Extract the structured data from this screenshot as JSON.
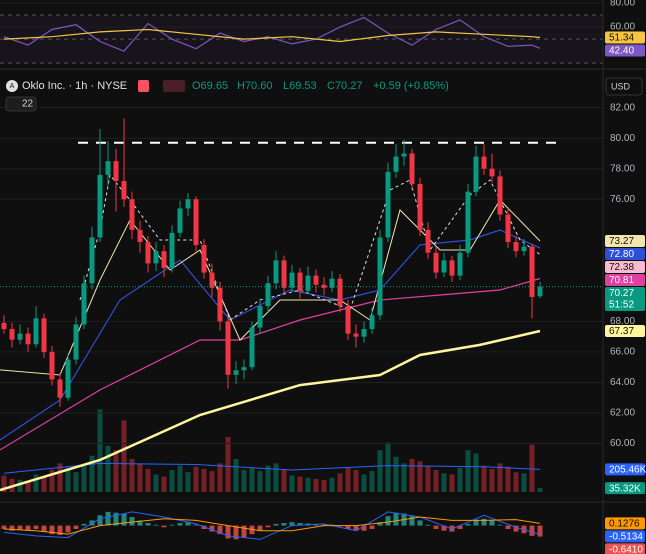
{
  "chart_data": [
    {
      "type": "candlestick",
      "title": "Oklo Inc. · 1h · NYSE",
      "ohlc_text": [
        "O69.65",
        "H70.60",
        "L69.53",
        "C70.27"
      ],
      "change": "+0.59 (+0.85%)",
      "currency": "USD",
      "badge": "22",
      "up_color": "#089981",
      "down_color": "#f23645",
      "ylim": [
        56.3,
        82.7
      ],
      "yticks": [
        {
          "value": 82,
          "label": "82.00"
        },
        {
          "value": 80,
          "label": "80.00"
        },
        {
          "value": 78,
          "label": "78.00"
        },
        {
          "value": 76,
          "label": "76.00"
        },
        {
          "value": 68,
          "label": "68.00"
        },
        {
          "value": 66,
          "label": "66.00"
        },
        {
          "value": 64,
          "label": "64.00"
        },
        {
          "value": 62,
          "label": "62.00"
        },
        {
          "value": 60,
          "label": "60.00"
        }
      ],
      "ohlc": [
        [
          67.9,
          68.4,
          67.2,
          67.5
        ],
        [
          67.5,
          67.9,
          66.3,
          66.8
        ],
        [
          66.8,
          67.8,
          66.5,
          67.2
        ],
        [
          67.2,
          67.6,
          66.0,
          66.5
        ],
        [
          66.5,
          69.0,
          66.3,
          68.2
        ],
        [
          68.2,
          68.5,
          65.6,
          66.0
        ],
        [
          66.0,
          66.4,
          63.8,
          64.2
        ],
        [
          64.2,
          64.6,
          62.4,
          63.0
        ],
        [
          63.0,
          65.9,
          62.8,
          65.5
        ],
        [
          65.5,
          68.3,
          65.2,
          67.8
        ],
        [
          67.8,
          71.0,
          67.5,
          70.5
        ],
        [
          70.5,
          74.2,
          70.1,
          73.5
        ],
        [
          73.5,
          80.6,
          73.2,
          77.6
        ],
        [
          77.6,
          79.8,
          76.9,
          78.5
        ],
        [
          78.5,
          79.3,
          75.2,
          77.2
        ],
        [
          77.2,
          81.3,
          75.5,
          76.0
        ],
        [
          76.0,
          76.5,
          73.4,
          74.0
        ],
        [
          74.0,
          74.6,
          72.5,
          73.2
        ],
        [
          73.2,
          73.6,
          71.2,
          71.8
        ],
        [
          71.8,
          73.2,
          71.3,
          72.6
        ],
        [
          72.6,
          73.0,
          70.9,
          71.5
        ],
        [
          71.5,
          74.3,
          71.2,
          73.8
        ],
        [
          73.8,
          75.9,
          73.5,
          75.4
        ],
        [
          75.4,
          76.4,
          74.9,
          76.0
        ],
        [
          76.0,
          76.2,
          72.6,
          73.0
        ],
        [
          73.0,
          73.4,
          70.8,
          71.2
        ],
        [
          71.2,
          71.8,
          69.6,
          70.2
        ],
        [
          70.2,
          70.6,
          67.4,
          68.0
        ],
        [
          68.0,
          68.3,
          63.6,
          64.5
        ],
        [
          64.5,
          65.4,
          63.9,
          64.8
        ],
        [
          64.8,
          65.5,
          64.2,
          65.0
        ],
        [
          65.0,
          68.0,
          64.8,
          67.6
        ],
        [
          67.6,
          69.5,
          67.2,
          69.0
        ],
        [
          69.0,
          71.0,
          68.6,
          70.5
        ],
        [
          70.5,
          72.6,
          70.1,
          72.0
        ],
        [
          72.0,
          72.3,
          69.8,
          70.2
        ],
        [
          70.2,
          71.7,
          69.9,
          71.2
        ],
        [
          71.2,
          71.5,
          69.5,
          70.0
        ],
        [
          70.0,
          71.6,
          69.8,
          71.0
        ],
        [
          71.0,
          71.4,
          69.9,
          70.4
        ],
        [
          70.4,
          70.9,
          69.7,
          70.2
        ],
        [
          70.2,
          71.3,
          69.9,
          70.8
        ],
        [
          70.8,
          71.1,
          68.6,
          69.0
        ],
        [
          69.0,
          69.4,
          66.8,
          67.2
        ],
        [
          67.2,
          67.8,
          66.3,
          67.0
        ],
        [
          67.0,
          68.0,
          66.6,
          67.5
        ],
        [
          67.5,
          68.9,
          67.2,
          68.4
        ],
        [
          68.4,
          74.0,
          68.1,
          73.5
        ],
        [
          73.5,
          78.4,
          73.2,
          77.8
        ],
        [
          77.8,
          79.6,
          77.4,
          78.8
        ],
        [
          78.8,
          79.9,
          78.2,
          79.0
        ],
        [
          79.0,
          79.3,
          76.6,
          77.0
        ],
        [
          77.0,
          77.4,
          73.6,
          74.0
        ],
        [
          74.0,
          74.5,
          72.1,
          72.5
        ],
        [
          72.5,
          72.9,
          70.8,
          71.2
        ],
        [
          71.2,
          72.5,
          70.9,
          72.0
        ],
        [
          72.0,
          72.3,
          70.6,
          71.0
        ],
        [
          71.0,
          73.0,
          70.7,
          72.5
        ],
        [
          72.5,
          77.0,
          72.2,
          76.5
        ],
        [
          76.5,
          79.5,
          76.2,
          78.8
        ],
        [
          78.8,
          79.6,
          77.6,
          78.0
        ],
        [
          78.0,
          79.0,
          77.1,
          77.5
        ],
        [
          77.5,
          77.9,
          74.6,
          75.0
        ],
        [
          75.0,
          75.4,
          72.8,
          73.2
        ],
        [
          73.2,
          73.6,
          72.2,
          72.6
        ],
        [
          72.6,
          73.4,
          72.3,
          72.9
        ],
        [
          72.9,
          73.1,
          68.2,
          69.6
        ],
        [
          69.65,
          70.6,
          69.53,
          70.27
        ]
      ],
      "last_tag": "70.27",
      "countdown": "51:52",
      "levels": [
        {
          "value": 79.7,
          "x": [
            9.25,
            69.5
          ],
          "color": "#ffffff"
        }
      ],
      "lines": [
        {
          "color": "#fff59d",
          "width": 2.5,
          "x": [
            -0.5,
            12,
            24.5,
            37,
            47,
            52,
            59.5,
            67
          ],
          "values": [
            56.95,
            58.92,
            61.87,
            63.83,
            64.49,
            65.8,
            66.46,
            67.37
          ],
          "tag": "67.37"
        },
        {
          "color": "#e040a0",
          "width": 1.2,
          "x": [
            -0.5,
            12,
            24.5,
            29.5,
            37,
            47,
            54.5,
            62,
            67
          ],
          "values": [
            59.58,
            63.51,
            66.78,
            66.78,
            68.09,
            69.4,
            69.73,
            70.06,
            70.81
          ],
          "tag": "70.81"
        },
        {
          "color": "#2f4fd6",
          "width": 1.2,
          "x": [
            -0.5,
            7,
            14.5,
            22,
            28.25,
            35.75,
            42,
            47,
            52,
            58.25,
            62,
            67
          ],
          "values": [
            60.23,
            62.85,
            69.4,
            72.02,
            68.09,
            70.06,
            69.4,
            70.06,
            73.01,
            73.33,
            73.99,
            72.8
          ],
          "tag": "72.80"
        },
        {
          "color": "#f3e5ab",
          "width": 1,
          "x": [
            -0.5,
            7,
            12,
            15.75,
            20.75,
            24.5,
            29.5,
            34.5,
            42,
            45.75,
            49.5,
            54.5,
            58.25,
            62,
            67
          ],
          "values": [
            64.82,
            64.49,
            70.71,
            74.64,
            71.37,
            72.68,
            66.78,
            69.4,
            69.4,
            68.09,
            75.3,
            72.68,
            72.68,
            75.95,
            73.27
          ],
          "tag": "73.27"
        },
        {
          "color": "#e0e0e0",
          "width": 1,
          "dash": true,
          "tag_color": "#f8bbd0",
          "x": [
            9.5,
            12,
            13.25,
            15.75,
            19.5,
            24.5,
            28.25,
            32,
            37,
            43.25,
            48.25,
            50.75,
            53.25,
            58.25,
            60.75,
            64.5,
            67
          ],
          "values": [
            69.4,
            73.99,
            77.59,
            75.95,
            73.33,
            73.33,
            68.09,
            69.4,
            70.06,
            68.75,
            76.61,
            77.26,
            72.68,
            76.28,
            77.26,
            73.33,
            72.38
          ],
          "tag": "72.38"
        }
      ]
    },
    {
      "type": "bar",
      "ylim": [
        0,
        1000
      ],
      "values": [
        150,
        120,
        110,
        90,
        160,
        140,
        200,
        260,
        220,
        180,
        240,
        330,
        750,
        420,
        380,
        650,
        300,
        260,
        210,
        160,
        140,
        200,
        240,
        180,
        230,
        210,
        190,
        260,
        500,
        300,
        200,
        220,
        190,
        240,
        260,
        200,
        150,
        140,
        130,
        120,
        110,
        130,
        170,
        220,
        200,
        160,
        190,
        380,
        450,
        320,
        260,
        300,
        280,
        240,
        200,
        170,
        160,
        220,
        380,
        350,
        240,
        210,
        260,
        230,
        180,
        170,
        430,
        35.32
      ],
      "last_tag": "35.32K",
      "ma": {
        "color": "#2962ff",
        "x": [
          0,
          12,
          24,
          36,
          48,
          60,
          67
        ],
        "values": [
          170,
          260,
          250,
          200,
          240,
          230,
          205.46
        ],
        "tag": "205.46K"
      }
    },
    {
      "type": "line",
      "ylim": [
        26,
        82.5
      ],
      "yticks": [
        {
          "value": 80,
          "label": "80.00"
        },
        {
          "value": 60,
          "label": "60.00"
        }
      ],
      "levels": [
        70,
        50,
        30
      ],
      "band": [
        30,
        70
      ],
      "lines": [
        {
          "color": "#7e57c2",
          "width": 1.2,
          "x": [
            0,
            3,
            6,
            9,
            12,
            15,
            18,
            21,
            24,
            27,
            30,
            33,
            36,
            39,
            42,
            45,
            48,
            51,
            54,
            57,
            60,
            63,
            66,
            67
          ],
          "values": [
            52,
            45,
            58,
            62,
            48,
            40,
            63,
            50,
            42,
            55,
            48,
            52,
            46,
            50,
            60,
            68,
            55,
            45,
            58,
            66,
            52,
            44,
            45,
            42.4
          ],
          "tag": "42.40"
        },
        {
          "color": "#f5c542",
          "width": 1.2,
          "x": [
            0,
            6,
            12,
            18,
            24,
            30,
            36,
            42,
            48,
            54,
            60,
            66,
            67
          ],
          "values": [
            50,
            52,
            56,
            58,
            54,
            50,
            52,
            48,
            53,
            56,
            54,
            52,
            51.34
          ],
          "tag": "51.34"
        }
      ]
    },
    {
      "type": "macd",
      "ylim": [
        -1.6,
        1.2
      ],
      "up_color": "#26a69a",
      "down_color": "#ef5350",
      "histogram": [
        -0.2,
        -0.3,
        -0.25,
        -0.3,
        -0.2,
        -0.35,
        -0.5,
        -0.55,
        -0.4,
        -0.2,
        0.1,
        0.3,
        0.6,
        0.8,
        0.75,
        0.7,
        0.5,
        0.3,
        0.15,
        0.05,
        -0.1,
        0.05,
        0.15,
        0.2,
        0.05,
        -0.2,
        -0.35,
        -0.5,
        -0.75,
        -0.8,
        -0.7,
        -0.5,
        -0.3,
        -0.1,
        0.1,
        0.15,
        0.2,
        0.15,
        0.12,
        0.08,
        0.05,
        0.06,
        -0.05,
        -0.2,
        -0.3,
        -0.3,
        -0.2,
        0.2,
        0.55,
        0.75,
        0.7,
        0.55,
        0.3,
        0.05,
        -0.2,
        -0.3,
        -0.35,
        -0.2,
        0.1,
        0.35,
        0.4,
        0.3,
        0.05,
        -0.2,
        -0.35,
        -0.45,
        -0.6,
        -0.641
      ],
      "hist_tag": "-0.6410",
      "lines": [
        {
          "color": "#2962ff",
          "width": 1,
          "x": [
            0,
            4,
            8,
            12,
            16,
            20,
            24,
            28,
            32,
            36,
            40,
            44,
            48,
            52,
            56,
            60,
            64,
            67
          ],
          "values": [
            -0.4,
            -0.6,
            -0.7,
            0.4,
            0.8,
            0.5,
            0.1,
            -0.6,
            -0.8,
            0.0,
            0.1,
            -0.3,
            0.8,
            0.5,
            -0.2,
            0.6,
            -0.1,
            -0.5134
          ],
          "tag": "-0.5134"
        },
        {
          "color": "#ff9800",
          "width": 1,
          "x": [
            0,
            4,
            8,
            12,
            16,
            20,
            24,
            28,
            32,
            36,
            40,
            44,
            48,
            52,
            56,
            60,
            64,
            67
          ],
          "values": [
            -0.2,
            -0.3,
            -0.5,
            0.0,
            0.2,
            0.4,
            0.3,
            0.0,
            -0.3,
            -0.3,
            0.0,
            0.0,
            0.2,
            0.5,
            0.3,
            0.3,
            0.35,
            0.1276
          ],
          "tag": "0.1276"
        }
      ]
    }
  ]
}
